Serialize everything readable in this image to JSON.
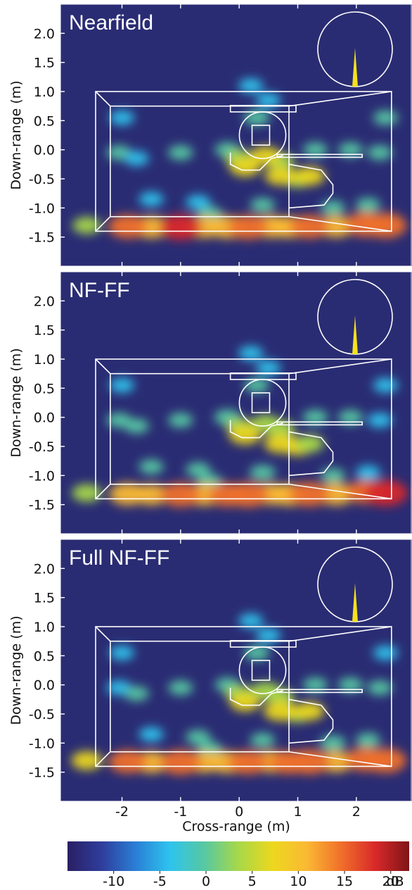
{
  "chart_data": {
    "type": "heatmap",
    "xlabel": "Cross-range (m)",
    "ylabel": "Down-range (m)",
    "xlim": [
      -3.05,
      2.95
    ],
    "ylim": [
      -2.0,
      2.5
    ],
    "x_ticks": [
      -2,
      -1,
      0,
      1,
      2
    ],
    "y_ticks": [
      2.0,
      1.5,
      1.0,
      0.5,
      0.0,
      -0.5,
      -1.0,
      -1.5
    ],
    "x_tick_labels": [
      "-2",
      "-1",
      "0",
      "1",
      "2"
    ],
    "y_tick_labels": [
      "2.0",
      "1.5",
      "1.0",
      "0.5",
      "0.0",
      "-0.5",
      "-1.0",
      "-1.5"
    ],
    "panels": [
      {
        "title": "Nearfield"
      },
      {
        "title": "NF-FF"
      },
      {
        "title": "Full NF-FF"
      }
    ],
    "colorbar": {
      "unit": "dB",
      "range": [
        -15,
        22
      ],
      "ticks": [
        -10,
        -5,
        0,
        5,
        10,
        15,
        20
      ],
      "tick_labels": [
        "-10",
        "-5",
        "0",
        "5",
        "10",
        "15",
        "20"
      ],
      "colors": [
        "#2a1f63",
        "#2f3d9c",
        "#2a7fd6",
        "#2ec4ee",
        "#56c8a3",
        "#a7d84a",
        "#ecd81e",
        "#fbb934",
        "#f0702a",
        "#d9292a",
        "#801417"
      ]
    },
    "background_color": "#2a2c73",
    "outline_color": "#ffffff",
    "antenna_color": "#f5e21c",
    "hotspots": [
      {
        "x": -1.9,
        "y": -1.32,
        "db": 13
      },
      {
        "x": -1.5,
        "y": -1.33,
        "db": 11
      },
      {
        "x": -1.0,
        "y": -1.33,
        "db": 16
      },
      {
        "x": -0.6,
        "y": -1.33,
        "db": 11
      },
      {
        "x": -0.2,
        "y": -1.33,
        "db": 13
      },
      {
        "x": 0.15,
        "y": -1.33,
        "db": 15
      },
      {
        "x": 0.55,
        "y": -1.32,
        "db": 11
      },
      {
        "x": 0.85,
        "y": -1.33,
        "db": 12
      },
      {
        "x": 1.2,
        "y": -1.32,
        "db": 15
      },
      {
        "x": 1.65,
        "y": -1.32,
        "db": 11
      },
      {
        "x": 2.15,
        "y": -1.28,
        "db": 14
      },
      {
        "x": 2.5,
        "y": -1.3,
        "db": 17
      },
      {
        "x": -2.6,
        "y": -1.3,
        "db": 5
      },
      {
        "x": 0.0,
        "y": -0.15,
        "db": 3
      },
      {
        "x": 0.45,
        "y": -0.1,
        "db": 5
      },
      {
        "x": 0.7,
        "y": -0.2,
        "db": 4
      },
      {
        "x": 0.1,
        "y": -0.3,
        "db": 6
      },
      {
        "x": 0.7,
        "y": -0.45,
        "db": 7
      },
      {
        "x": 1.0,
        "y": -0.5,
        "db": 5
      },
      {
        "x": 1.2,
        "y": -0.45,
        "db": 5
      },
      {
        "x": -2.05,
        "y": -0.05,
        "db": -2
      },
      {
        "x": -1.75,
        "y": -0.15,
        "db": -2
      },
      {
        "x": -1.0,
        "y": -0.05,
        "db": -1
      },
      {
        "x": -0.2,
        "y": 0.0,
        "db": 1
      },
      {
        "x": 1.3,
        "y": 0.0,
        "db": 0
      },
      {
        "x": 1.9,
        "y": 0.0,
        "db": -1
      },
      {
        "x": 2.4,
        "y": -0.05,
        "db": -2
      },
      {
        "x": 0.3,
        "y": 0.55,
        "db": 0
      },
      {
        "x": 0.5,
        "y": 0.85,
        "db": -3
      },
      {
        "x": 0.2,
        "y": 1.1,
        "db": -3
      },
      {
        "x": -1.5,
        "y": -0.85,
        "db": -2
      },
      {
        "x": -0.7,
        "y": -0.9,
        "db": -1
      },
      {
        "x": 0.4,
        "y": -0.95,
        "db": 0
      },
      {
        "x": 1.6,
        "y": -1.0,
        "db": 0
      },
      {
        "x": 2.2,
        "y": -0.95,
        "db": -1
      },
      {
        "x": -0.5,
        "y": -1.1,
        "db": 0
      },
      {
        "x": 2.5,
        "y": 0.55,
        "db": -3
      },
      {
        "x": -2.0,
        "y": 0.55,
        "db": -4
      }
    ]
  }
}
